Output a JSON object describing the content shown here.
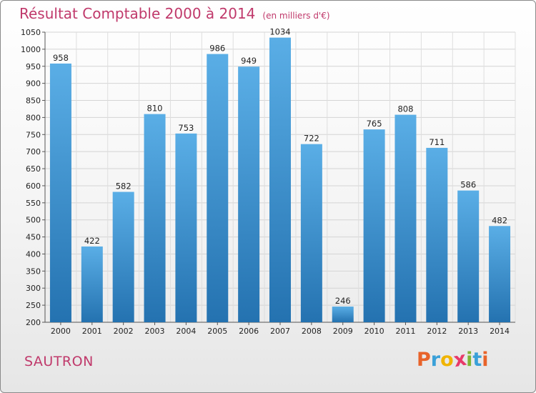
{
  "title": "Résultat Comptable 2000 à 2014",
  "subtitle": "(en milliers d'€)",
  "city": "SAUTRON",
  "logo": {
    "letters": [
      "P",
      "r",
      "o",
      "x",
      "i",
      "t",
      "i"
    ],
    "colors": [
      "#e8632a",
      "#3aa0d8",
      "#f0b400",
      "#e83a6a",
      "#7fb534",
      "#3aa0d8",
      "#e8632a"
    ]
  },
  "colors": {
    "bar_top": "#5aaee6",
    "bar_bottom": "#2472b0",
    "title": "#c0396b"
  },
  "chart_data": {
    "type": "bar",
    "title": "Résultat Comptable 2000 à 2014",
    "subtitle": "(en milliers d'€)",
    "categories": [
      "2000",
      "2001",
      "2002",
      "2003",
      "2004",
      "2005",
      "2006",
      "2007",
      "2008",
      "2009",
      "2010",
      "2011",
      "2012",
      "2013",
      "2014"
    ],
    "values": [
      958,
      422,
      582,
      810,
      753,
      986,
      949,
      1034,
      722,
      246,
      765,
      808,
      711,
      586,
      482
    ],
    "ylim": [
      200,
      1050
    ],
    "yticks": [
      200,
      250,
      300,
      350,
      400,
      450,
      500,
      550,
      600,
      650,
      700,
      750,
      800,
      850,
      900,
      950,
      1000,
      1050
    ],
    "grid": true,
    "xlabel": "",
    "ylabel": ""
  }
}
